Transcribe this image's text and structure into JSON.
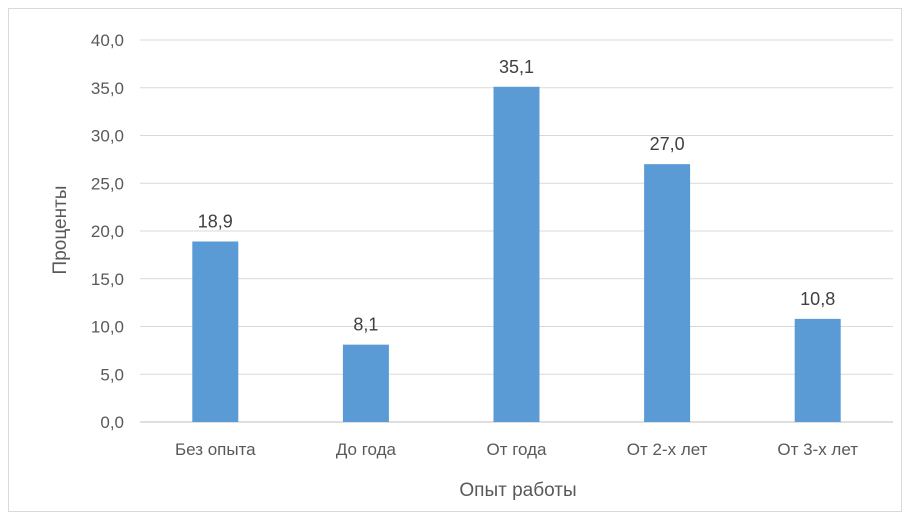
{
  "chart_data": {
    "type": "bar",
    "title": "",
    "xlabel": "Опыт работы",
    "ylabel": "Проценты",
    "categories": [
      "Без опыта",
      "До года",
      "От года",
      "От 2-х лет",
      "От 3-х лет"
    ],
    "values": [
      18.9,
      8.1,
      35.1,
      27.0,
      10.8
    ],
    "data_labels": [
      "18,9",
      "8,1",
      "35,1",
      "27,0",
      "10,8"
    ],
    "ylim": [
      0,
      40
    ],
    "yticks": [
      "0,0",
      "5,0",
      "10,0",
      "15,0",
      "20,0",
      "25,0",
      "30,0",
      "35,0",
      "40,0"
    ],
    "grid": true,
    "legend": "none",
    "colors": {
      "bar": "#5b9bd5"
    }
  }
}
